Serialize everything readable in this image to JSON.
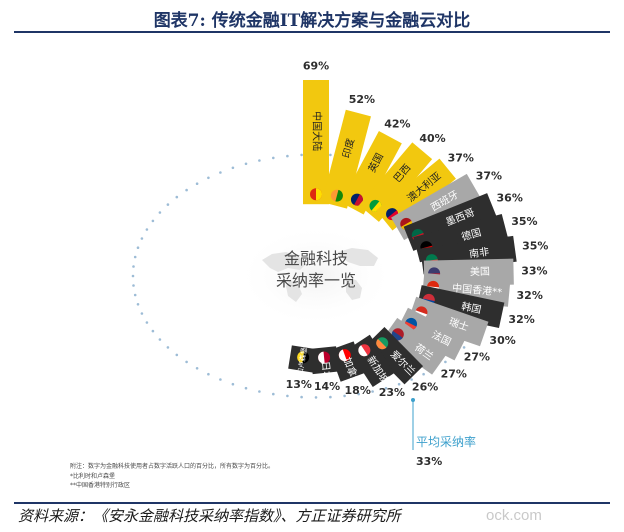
{
  "figure": {
    "title": "图表7:  传统金融IT解决方案与金融云对比",
    "source": "资料来源：《安永金融科技采纳率指数》、方正证券研究所",
    "watermark": "ock.com"
  },
  "chart_data": {
    "type": "bar",
    "layout": "radial",
    "center_title_line1": "金融科技",
    "center_title_line2": "采纳率一览",
    "average_label": "平均采纳率",
    "average_value_label": "33%",
    "average_value": 33,
    "footnote_line1": "附注：数字为金融科技使用者占数字活跃人口的百分比，所有数字为百分比。",
    "footnote_line2": "*比利时和卢森堡",
    "footnote_line3": "**中国香港特别行政区",
    "value_range": [
      0,
      69
    ],
    "colors": {
      "highlight": "#f2c80f",
      "dark": "#2e2e2e",
      "gray": "#a8a8a8",
      "dots": "#9dbcd6",
      "average_text": "#3da0cc"
    },
    "bars": [
      {
        "country": "中国大陆",
        "value": 69,
        "label": "69%",
        "color": "highlight"
      },
      {
        "country": "印度",
        "value": 52,
        "label": "52%",
        "color": "highlight"
      },
      {
        "country": "英国",
        "value": 42,
        "label": "42%",
        "color": "highlight"
      },
      {
        "country": "巴西",
        "value": 40,
        "label": "40%",
        "color": "highlight"
      },
      {
        "country": "澳大利亚",
        "value": 37,
        "label": "37%",
        "color": "highlight"
      },
      {
        "country": "西班牙",
        "value": 37,
        "label": "37%",
        "color": "gray"
      },
      {
        "country": "墨西哥",
        "value": 36,
        "label": "36%",
        "color": "dark"
      },
      {
        "country": "德国",
        "value": 35,
        "label": "35%",
        "color": "dark"
      },
      {
        "country": "南非",
        "value": 35,
        "label": "35%",
        "color": "dark"
      },
      {
        "country": "美国",
        "value": 33,
        "label": "33%",
        "color": "gray"
      },
      {
        "country": "中国香港**",
        "value": 32,
        "label": "32%",
        "color": "gray"
      },
      {
        "country": "韩国",
        "value": 32,
        "label": "32%",
        "color": "dark"
      },
      {
        "country": "瑞士",
        "value": 30,
        "label": "30%",
        "color": "gray"
      },
      {
        "country": "法国",
        "value": 27,
        "label": "27%",
        "color": "gray"
      },
      {
        "country": "荷兰",
        "value": 27,
        "label": "27%",
        "color": "gray"
      },
      {
        "country": "爱尔兰",
        "value": 26,
        "label": "26%",
        "color": "dark"
      },
      {
        "country": "新加坡",
        "value": 23,
        "label": "23%",
        "color": "dark"
      },
      {
        "country": "加拿大",
        "value": 18,
        "label": "18%",
        "color": "dark"
      },
      {
        "country": "日本",
        "value": 14,
        "label": "14%",
        "color": "dark"
      },
      {
        "country": "比利时和卢森堡*",
        "value": 13,
        "label": "13%",
        "color": "dark"
      }
    ]
  }
}
